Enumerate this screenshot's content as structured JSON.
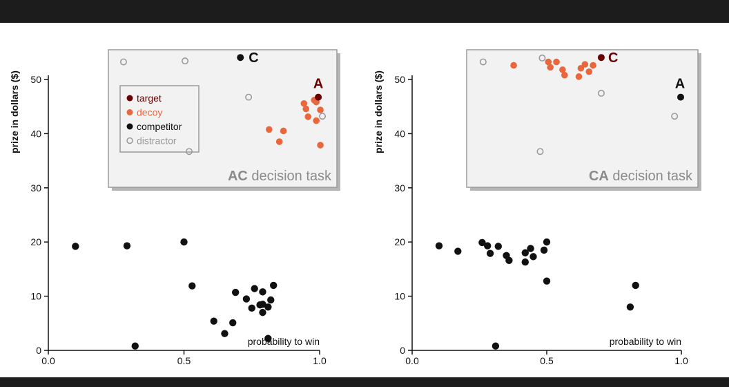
{
  "chart_data": [
    {
      "type": "scatter",
      "xlabel": "probability to win",
      "ylabel": "prize in dollars ($)",
      "xlim": [
        0,
        1
      ],
      "ylim": [
        0,
        50
      ],
      "xticks": [
        "0.0",
        "0.5",
        "1.0"
      ],
      "yticks": [
        "0",
        "10",
        "20",
        "30",
        "40",
        "50"
      ],
      "series": [
        {
          "name": "",
          "color": "#111111",
          "x": [
            0.1,
            0.29,
            0.32,
            0.5,
            0.53,
            0.61,
            0.65,
            0.68,
            0.69,
            0.73,
            0.75,
            0.76,
            0.78,
            0.79,
            0.79,
            0.79,
            0.81,
            0.81,
            0.82,
            0.83
          ],
          "y": [
            19.2,
            19.3,
            0.8,
            20.0,
            11.9,
            5.4,
            3.1,
            5.1,
            10.7,
            9.5,
            7.8,
            11.4,
            8.4,
            7.0,
            10.8,
            8.5,
            2.2,
            8.0,
            9.3,
            12.0
          ]
        }
      ],
      "inset": {
        "title_bold": "AC",
        "title_rest": " decision task",
        "xlim": [
          0,
          1
        ],
        "ylim": [
          30,
          54
        ],
        "labels": {
          "A": "A",
          "C": "C"
        },
        "target": {
          "x": 0.97,
          "y": 44.6
        },
        "competitor": {
          "x": 0.59,
          "y": 52.7
        },
        "decoy": {
          "x": [
            0.73,
            0.78,
            0.8,
            0.9,
            0.91,
            0.92,
            0.95,
            0.96,
            0.96,
            0.98,
            0.98
          ],
          "y": [
            38.0,
            35.5,
            37.7,
            43.3,
            42.2,
            40.6,
            44.0,
            43.6,
            39.8,
            34.8,
            42.0
          ]
        },
        "distractor": {
          "x": [
            0.02,
            0.32,
            0.63,
            0.34,
            0.99
          ],
          "y": [
            51.8,
            52.0,
            44.6,
            33.5,
            40.7
          ]
        },
        "legend": [
          {
            "label": "target",
            "color": "#6b0000",
            "kind": "filled"
          },
          {
            "label": "decoy",
            "color": "#e8673c",
            "kind": "filled"
          },
          {
            "label": "competitor",
            "color": "#111111",
            "kind": "filled"
          },
          {
            "label": "distractor",
            "color": "#9a9a9a",
            "kind": "hollow"
          }
        ]
      }
    },
    {
      "type": "scatter",
      "xlabel": "probability to win",
      "ylabel": "prize in dollars ($)",
      "xlim": [
        0,
        1
      ],
      "ylim": [
        0,
        50
      ],
      "xticks": [
        "0.0",
        "0.5",
        "1.0"
      ],
      "yticks": [
        "0",
        "10",
        "20",
        "30",
        "40",
        "50"
      ],
      "series": [
        {
          "name": "",
          "color": "#111111",
          "x": [
            0.1,
            0.17,
            0.26,
            0.28,
            0.29,
            0.31,
            0.32,
            0.35,
            0.36,
            0.42,
            0.42,
            0.44,
            0.45,
            0.49,
            0.5,
            0.5,
            0.81,
            0.83
          ],
          "y": [
            19.3,
            18.3,
            19.9,
            19.3,
            17.9,
            0.8,
            19.2,
            17.5,
            16.6,
            16.3,
            18.0,
            18.8,
            17.3,
            18.5,
            20.0,
            12.8,
            8.0,
            12.0
          ]
        }
      ],
      "inset": {
        "title_bold": "CA",
        "title_rest": " decision task",
        "xlim": [
          0,
          1
        ],
        "ylim": [
          30,
          54
        ],
        "labels": {
          "A": "A",
          "C": "C"
        },
        "target": {
          "x": 0.61,
          "y": 52.7
        },
        "competitor": {
          "x": 1.0,
          "y": 44.6
        },
        "decoy": {
          "x": [
            0.18,
            0.35,
            0.36,
            0.39,
            0.42,
            0.43,
            0.5,
            0.51,
            0.53,
            0.55,
            0.57
          ],
          "y": [
            51.1,
            51.8,
            50.7,
            51.8,
            50.2,
            49.1,
            48.8,
            50.5,
            51.3,
            49.8,
            51.1
          ]
        },
        "distractor": {
          "x": [
            0.03,
            0.32,
            0.61,
            0.31,
            0.97
          ],
          "y": [
            51.8,
            52.6,
            45.4,
            33.5,
            40.7
          ]
        },
        "legend": []
      }
    }
  ]
}
